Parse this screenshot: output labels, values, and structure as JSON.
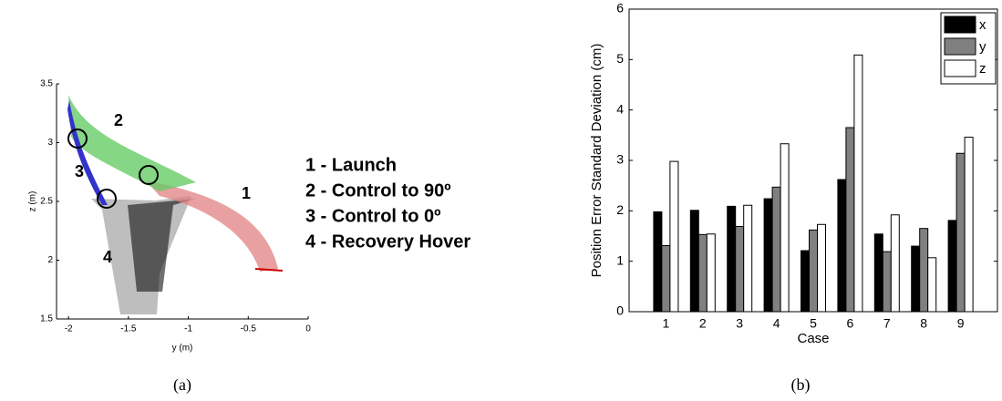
{
  "chart_data": [
    {
      "type": "trajectory",
      "xlabel": "y (m)",
      "ylabel": "z (m)",
      "xlim": [
        -2.1,
        0
      ],
      "ylim": [
        1.5,
        3.5
      ],
      "xticks": [
        -2,
        -1.5,
        -1,
        -0.5,
        0
      ],
      "yticks": [
        1.5,
        2,
        2.5,
        3,
        3.5
      ],
      "annotations": [
        "2",
        "3",
        "1",
        "4"
      ],
      "legend": [
        "1 - Launch",
        "2 - Control to 90º",
        "3 - Control to 0º",
        "4 - Recovery Hover"
      ],
      "caption": "(a)"
    },
    {
      "type": "bar",
      "xlabel": "Case",
      "ylabel": "Position Error Standard Deviation (cm)",
      "categories": [
        "1",
        "2",
        "3",
        "4",
        "5",
        "6",
        "7",
        "8",
        "9"
      ],
      "series": [
        {
          "name": "x",
          "color": "#000000",
          "values": [
            1.98,
            2.01,
            2.09,
            2.24,
            1.21,
            2.62,
            1.54,
            1.3,
            1.81
          ]
        },
        {
          "name": "y",
          "color": "#808080",
          "values": [
            1.31,
            1.53,
            1.69,
            2.47,
            1.62,
            3.65,
            1.19,
            1.65,
            3.14
          ]
        },
        {
          "name": "z",
          "color": "#ffffff",
          "values": [
            2.98,
            1.54,
            2.11,
            3.33,
            1.73,
            5.09,
            1.92,
            1.07,
            3.46
          ]
        }
      ],
      "ylim": [
        0,
        6
      ],
      "yticks": [
        0,
        1,
        2,
        3,
        4,
        5,
        6
      ],
      "legend": "upper right",
      "caption": "(b)"
    }
  ]
}
